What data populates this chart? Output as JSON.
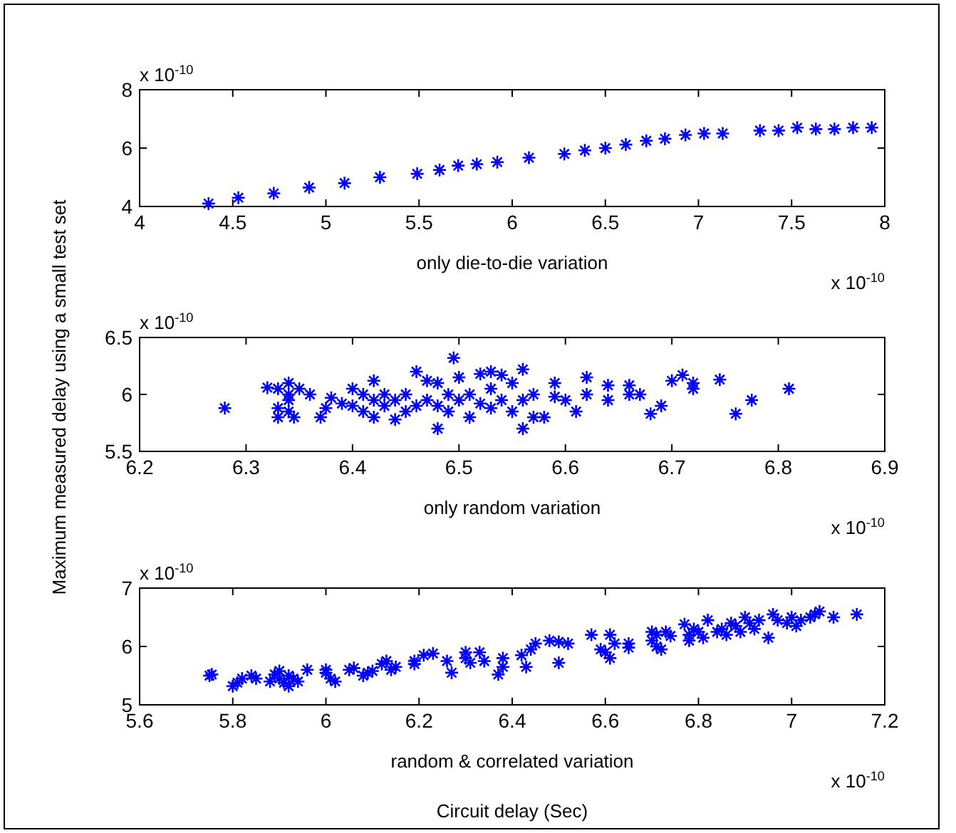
{
  "chart_data": [
    {
      "type": "scatter",
      "xlabel": "only die-to-die variation",
      "marker": "cross",
      "grid": false,
      "annotations": [
        "x 10$^{-10}$",
        "x 10$^{-10}$"
      ],
      "xlim": [
        4,
        8
      ],
      "xticks": [
        4,
        4.5,
        5,
        5.5,
        6,
        6.5,
        7,
        7.5,
        8
      ],
      "ylim": [
        4,
        8
      ],
      "yticks": [
        4,
        6,
        8
      ],
      "series": [
        {
          "color": "#0000ff",
          "x": [
            4.37,
            4.53,
            4.72,
            4.91,
            5.1,
            5.29,
            5.49,
            5.61,
            5.71,
            5.81,
            5.92,
            6.09,
            6.28,
            6.39,
            6.5,
            6.61,
            6.72,
            6.82,
            6.93,
            7.03,
            7.13,
            7.33,
            7.43,
            7.53,
            7.63,
            7.73,
            7.83,
            7.93
          ],
          "values": [
            4.1,
            4.3,
            4.45,
            4.65,
            4.8,
            5.0,
            5.12,
            5.25,
            5.4,
            5.45,
            5.52,
            5.67,
            5.8,
            5.92,
            6.0,
            6.12,
            6.25,
            6.32,
            6.45,
            6.5,
            6.5,
            6.6,
            6.6,
            6.7,
            6.65,
            6.65,
            6.7,
            6.7
          ]
        }
      ]
    },
    {
      "type": "scatter",
      "xlabel": "only random variation",
      "ylabel": "Maximum measured delay using a small test set",
      "marker": "cross",
      "grid": false,
      "annotations": [
        "x 10$^{-10}$",
        "x 10$^{-10}$"
      ],
      "xlim": [
        6.2,
        6.9
      ],
      "xticks": [
        6.2,
        6.3,
        6.4,
        6.5,
        6.6,
        6.7,
        6.8,
        6.9
      ],
      "ylim": [
        5.5,
        6.5
      ],
      "yticks": [
        5.5,
        6,
        6.5
      ],
      "series": [
        {
          "color": "#0000ff",
          "x": [
            6.28,
            6.32,
            6.33,
            6.33,
            6.33,
            6.34,
            6.34,
            6.34,
            6.34,
            6.345,
            6.35,
            6.36,
            6.37,
            6.375,
            6.38,
            6.39,
            6.4,
            6.4,
            6.41,
            6.41,
            6.42,
            6.42,
            6.42,
            6.43,
            6.43,
            6.44,
            6.44,
            6.45,
            6.45,
            6.46,
            6.46,
            6.47,
            6.47,
            6.48,
            6.48,
            6.48,
            6.49,
            6.49,
            6.495,
            6.5,
            6.5,
            6.51,
            6.51,
            6.52,
            6.52,
            6.53,
            6.53,
            6.53,
            6.54,
            6.54,
            6.55,
            6.55,
            6.56,
            6.56,
            6.56,
            6.57,
            6.57,
            6.58,
            6.59,
            6.59,
            6.6,
            6.61,
            6.62,
            6.62,
            6.64,
            6.64,
            6.66,
            6.66,
            6.67,
            6.68,
            6.69,
            6.7,
            6.71,
            6.72,
            6.72,
            6.745,
            6.76,
            6.775,
            6.81
          ],
          "values": [
            5.88,
            6.06,
            6.05,
            5.8,
            5.88,
            6.1,
            6.0,
            5.95,
            5.85,
            5.8,
            6.05,
            6.0,
            5.8,
            5.88,
            5.97,
            5.92,
            6.05,
            5.9,
            6.0,
            5.85,
            6.12,
            5.95,
            5.8,
            6.0,
            5.9,
            5.78,
            5.95,
            5.85,
            6.0,
            6.2,
            5.9,
            6.12,
            5.95,
            6.1,
            5.7,
            5.9,
            6.0,
            5.85,
            6.32,
            6.15,
            5.95,
            6.0,
            5.8,
            6.18,
            5.92,
            6.2,
            6.05,
            5.88,
            5.95,
            6.17,
            5.85,
            6.1,
            6.22,
            5.95,
            5.7,
            5.8,
            6.0,
            5.8,
            6.1,
            5.98,
            5.95,
            5.85,
            6.15,
            6.0,
            6.08,
            5.95,
            6.08,
            6.0,
            6.0,
            5.83,
            5.9,
            6.12,
            6.17,
            6.1,
            6.05,
            6.13,
            5.83,
            5.95,
            6.05
          ]
        }
      ]
    },
    {
      "type": "scatter",
      "xlabel": "random & correlated variation",
      "marker": "cross",
      "grid": false,
      "annotations": [
        "x 10$^{-10}$",
        "x 10$^{-10}$",
        "Circuit delay (Sec)"
      ],
      "xlim": [
        5.6,
        7.2
      ],
      "xticks": [
        5.6,
        5.8,
        6,
        6.2,
        6.4,
        6.6,
        6.8,
        7,
        7.2
      ],
      "ylim": [
        5,
        7
      ],
      "yticks": [
        5,
        6,
        7
      ],
      "series": [
        {
          "color": "#0000ff",
          "x": [
            5.75,
            5.755,
            5.8,
            5.81,
            5.82,
            5.84,
            5.85,
            5.88,
            5.89,
            5.9,
            5.9,
            5.91,
            5.92,
            5.92,
            5.93,
            5.94,
            5.96,
            6.0,
            6.0,
            6.01,
            6.02,
            6.05,
            6.06,
            6.08,
            6.09,
            6.1,
            6.12,
            6.13,
            6.14,
            6.15,
            6.19,
            6.19,
            6.21,
            6.23,
            6.26,
            6.27,
            6.3,
            6.3,
            6.31,
            6.33,
            6.34,
            6.37,
            6.38,
            6.38,
            6.42,
            6.43,
            6.44,
            6.45,
            6.48,
            6.5,
            6.5,
            6.52,
            6.57,
            6.59,
            6.6,
            6.61,
            6.61,
            6.62,
            6.65,
            6.65,
            6.7,
            6.7,
            6.71,
            6.71,
            6.72,
            6.73,
            6.74,
            6.77,
            6.78,
            6.78,
            6.79,
            6.8,
            6.81,
            6.82,
            6.84,
            6.85,
            6.86,
            6.87,
            6.88,
            6.89,
            6.9,
            6.91,
            6.92,
            6.93,
            6.95,
            6.96,
            6.97,
            6.99,
            7.0,
            7.01,
            7.02,
            7.04,
            7.05,
            7.06,
            7.09,
            7.14
          ],
          "values": [
            5.5,
            5.52,
            5.32,
            5.38,
            5.45,
            5.5,
            5.45,
            5.4,
            5.52,
            5.45,
            5.58,
            5.38,
            5.5,
            5.32,
            5.45,
            5.4,
            5.6,
            5.55,
            5.6,
            5.45,
            5.4,
            5.6,
            5.63,
            5.5,
            5.55,
            5.58,
            5.7,
            5.75,
            5.6,
            5.65,
            5.75,
            5.7,
            5.85,
            5.88,
            5.75,
            5.55,
            5.8,
            5.9,
            5.72,
            5.9,
            5.75,
            5.52,
            5.8,
            5.65,
            5.85,
            5.65,
            5.95,
            6.05,
            6.1,
            5.72,
            6.08,
            6.05,
            6.2,
            5.95,
            5.9,
            6.2,
            5.8,
            6.05,
            6.05,
            5.98,
            6.25,
            6.1,
            6.0,
            6.2,
            5.95,
            6.25,
            6.18,
            6.38,
            6.2,
            6.1,
            6.3,
            6.25,
            6.15,
            6.45,
            6.25,
            6.3,
            6.2,
            6.4,
            6.35,
            6.25,
            6.5,
            6.4,
            6.3,
            6.45,
            6.15,
            6.55,
            6.45,
            6.4,
            6.5,
            6.35,
            6.45,
            6.5,
            6.55,
            6.6,
            6.5,
            6.55
          ]
        }
      ]
    }
  ]
}
